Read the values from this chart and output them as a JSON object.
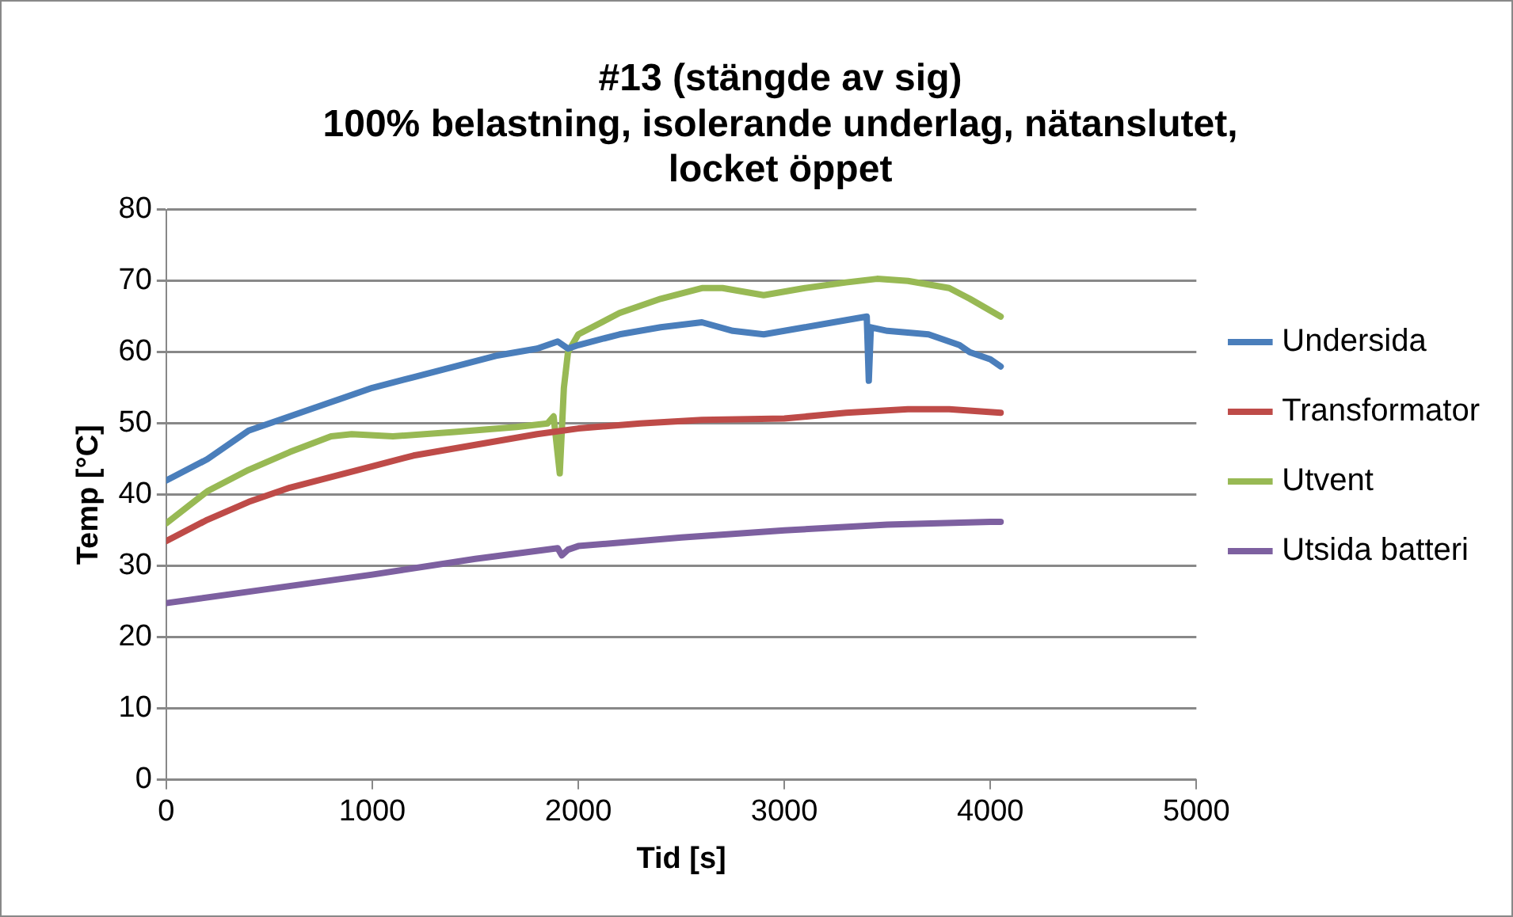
{
  "chart_data": {
    "type": "line",
    "title": [
      "#13 (stängde av sig)",
      "100% belastning, isolerande underlag, nätanslutet,",
      "locket öppet"
    ],
    "xlabel": "Tid [s]",
    "ylabel": "Temp [°C]",
    "xlim": [
      0,
      5000
    ],
    "xticks": [
      0,
      1000,
      2000,
      3000,
      4000,
      5000
    ],
    "ylim": [
      0,
      80
    ],
    "yticks": [
      0,
      10,
      20,
      30,
      40,
      50,
      60,
      70,
      80
    ],
    "grid": "y",
    "legend": "right",
    "marker": "none",
    "series": [
      {
        "name": "Undersida",
        "color": "#4a7ebb",
        "x": [
          0,
          200,
          400,
          600,
          800,
          1000,
          1200,
          1400,
          1600,
          1800,
          1900,
          1950,
          2000,
          2200,
          2400,
          2600,
          2750,
          2900,
          3100,
          3300,
          3400,
          3410,
          3420,
          3500,
          3700,
          3850,
          3900,
          4000,
          4050
        ],
        "values": [
          42,
          45,
          49,
          51,
          53,
          55,
          56.5,
          58,
          59.5,
          60.5,
          61.5,
          60.5,
          61,
          62.5,
          63.5,
          64.2,
          63,
          62.5,
          63.5,
          64.5,
          65,
          56,
          63.5,
          63,
          62.5,
          61,
          60,
          59,
          58
        ]
      },
      {
        "name": "Transformator",
        "color": "#be4b48",
        "x": [
          0,
          200,
          400,
          600,
          800,
          1000,
          1200,
          1500,
          1800,
          2000,
          2300,
          2600,
          3000,
          3300,
          3600,
          3800,
          4050
        ],
        "values": [
          33.5,
          36.5,
          39,
          41,
          42.5,
          44,
          45.5,
          47,
          48.5,
          49.3,
          50,
          50.5,
          50.7,
          51.5,
          52,
          52,
          51.5
        ]
      },
      {
        "name": "Utvent",
        "color": "#98b954",
        "x": [
          0,
          200,
          400,
          600,
          800,
          900,
          1100,
          1400,
          1700,
          1850,
          1880,
          1910,
          1930,
          1950,
          2000,
          2200,
          2400,
          2600,
          2700,
          2900,
          3100,
          3300,
          3450,
          3600,
          3800,
          3900,
          4050
        ],
        "values": [
          36,
          40.5,
          43.5,
          46,
          48.2,
          48.5,
          48.2,
          48.8,
          49.5,
          50,
          51,
          43,
          55,
          60,
          62.5,
          65.5,
          67.5,
          69,
          69,
          68,
          69,
          69.8,
          70.3,
          70,
          69,
          67.5,
          65
        ]
      },
      {
        "name": "Utsida batteri",
        "color": "#7d60a0",
        "x": [
          0,
          500,
          1000,
          1500,
          1900,
          1920,
          1950,
          2000,
          2500,
          3000,
          3500,
          4000,
          4050
        ],
        "values": [
          24.8,
          26.8,
          28.8,
          31,
          32.5,
          31.5,
          32.3,
          32.8,
          34,
          35,
          35.8,
          36.2,
          36.2
        ]
      }
    ]
  }
}
